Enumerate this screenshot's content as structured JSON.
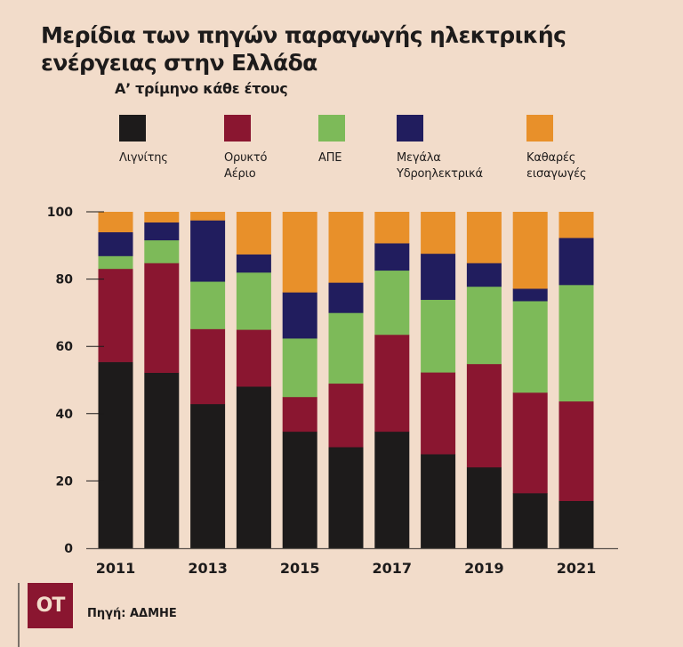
{
  "header": {
    "title": "Μερίδια των πηγών παραγωγής ηλεκτρικής ενέργειας στην Ελλάδα",
    "subtitle": "Α’ τρίμηνο κάθε έτους"
  },
  "footer": {
    "logo_text": "OT",
    "source": "Πηγή: ΑΔΜΗΕ"
  },
  "chart_data": {
    "type": "bar",
    "stacked": true,
    "title": "Μερίδια των πηγών παραγωγής ηλεκτρικής ενέργειας στην Ελλάδα",
    "subtitle": "Α’ τρίμηνο κάθε έτους",
    "xlabel": "",
    "ylabel": "",
    "ylim": [
      0,
      100
    ],
    "yticks": [
      0,
      20,
      40,
      60,
      80,
      100
    ],
    "grid": false,
    "legend_position": "top",
    "categories": [
      "2011",
      "2012",
      "2013",
      "2014",
      "2015",
      "2016",
      "2017",
      "2018",
      "2019",
      "2020",
      "2021"
    ],
    "xtick_labels": [
      "2011",
      "",
      "2013",
      "",
      "2015",
      "",
      "2017",
      "",
      "2019",
      "",
      "2021"
    ],
    "series": [
      {
        "name": "Λιγνίτης",
        "color": "#1d1b1b",
        "values": [
          55.4,
          52.2,
          42.9,
          48.1,
          34.7,
          30.1,
          34.7,
          28.0,
          24.1,
          16.4,
          14.1
        ]
      },
      {
        "name": "Ορυκτό Αέριο",
        "color": "#8a1630",
        "values": [
          27.7,
          32.6,
          22.3,
          16.9,
          10.3,
          18.9,
          28.8,
          24.3,
          30.7,
          29.9,
          29.6
        ]
      },
      {
        "name": "ΑΠΕ",
        "color": "#7dba59",
        "values": [
          3.8,
          6.8,
          14.1,
          17.0,
          17.4,
          21.0,
          19.1,
          21.6,
          23.0,
          27.2,
          34.6
        ]
      },
      {
        "name": "Μεγάλα Υδροηλεκτρικά",
        "color": "#211d5e",
        "values": [
          7.1,
          5.3,
          18.2,
          5.4,
          13.7,
          9.0,
          8.1,
          13.7,
          7.0,
          3.7,
          14.0
        ]
      },
      {
        "name": "Καθαρές εισαγωγές",
        "color": "#e8902a",
        "values": [
          6.0,
          3.1,
          2.5,
          12.6,
          23.9,
          21.0,
          9.3,
          12.4,
          15.2,
          22.8,
          7.7
        ]
      }
    ],
    "legend_labels": [
      "Λιγνίτης",
      "Ορυκτό\nΑέριο",
      "ΑΠΕ",
      "Μεγάλα\nΥδροηλεκτρικά",
      "Καθαρές\nεισαγωγές"
    ]
  }
}
